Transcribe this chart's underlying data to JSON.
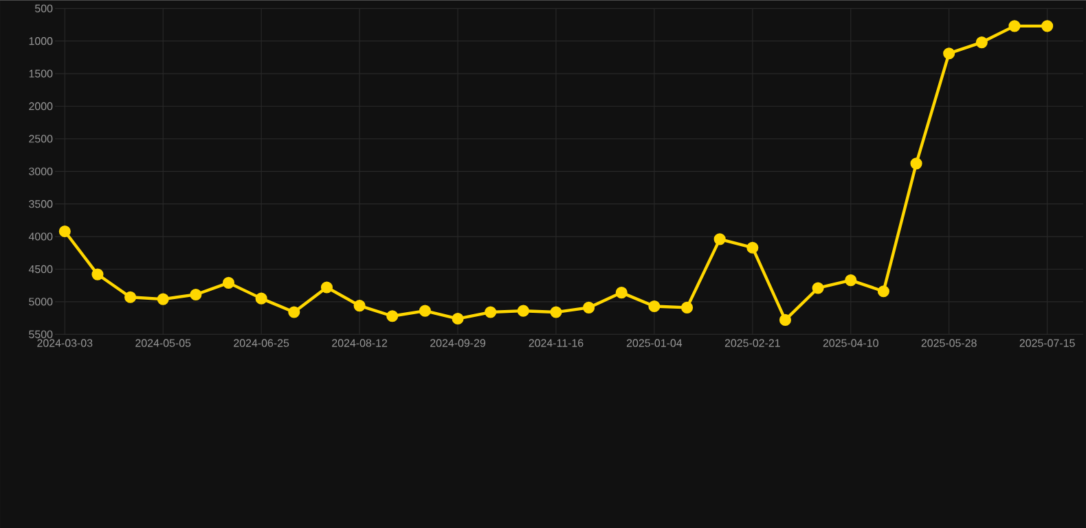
{
  "chart_data": {
    "type": "line",
    "categories": [
      "2024-03-03",
      null,
      null,
      "2024-05-05",
      null,
      null,
      "2024-06-25",
      null,
      null,
      "2024-08-12",
      null,
      null,
      "2024-09-29",
      null,
      null,
      "2024-11-16",
      null,
      null,
      "2025-01-04",
      null,
      null,
      "2025-02-21",
      null,
      null,
      "2025-04-10",
      null,
      null,
      "2025-05-28",
      null,
      null,
      "2025-07-15"
    ],
    "series": [
      {
        "color": "#ffd700",
        "values": [
          3920,
          4580,
          4930,
          4960,
          4890,
          4710,
          4950,
          5160,
          4780,
          5060,
          5220,
          5140,
          5260,
          5160,
          5140,
          5160,
          5090,
          4860,
          5070,
          5090,
          4040,
          4170,
          5280,
          4790,
          4670,
          4840,
          2880,
          1190,
          1020,
          770,
          770
        ]
      }
    ],
    "ylim": [
      5500,
      500
    ],
    "yticks": [
      500,
      1000,
      1500,
      2000,
      2500,
      3000,
      3500,
      4000,
      4500,
      5000,
      5500
    ],
    "grid": true,
    "legend": false,
    "marker": "circle",
    "line_style": "solid"
  }
}
